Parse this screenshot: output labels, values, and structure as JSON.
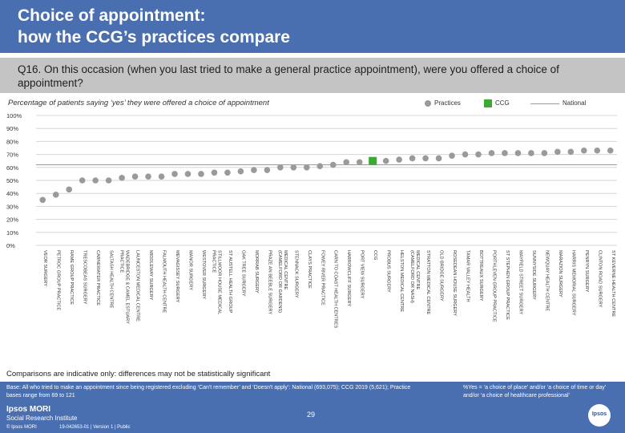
{
  "header": {
    "title_line1": "Choice of appointment:",
    "title_line2": "how the CCG’s practices compare"
  },
  "question": "Q16. On this occasion (when you last tried to make a general practice appointment), were you offered a choice of appointment?",
  "subtitle": "Percentage of patients saying ‘yes’ they were offered a choice of appointment",
  "legend": {
    "practices": "Practices",
    "ccg": "CCG",
    "national": "National"
  },
  "colors": {
    "bar": "#4a6fb0",
    "practice": "#9a9a9a",
    "ccg": "#3aaa35",
    "national": "#c9a000",
    "grid": "#d5d5d5"
  },
  "chart_data": {
    "type": "scatter",
    "title": "Percentage of patients saying ‘yes’ they were offered a choice of appointment",
    "ylabel": "%",
    "ylim": [
      0,
      100
    ],
    "yticks": [
      "0%",
      "10%",
      "20%",
      "30%",
      "40%",
      "50%",
      "60%",
      "70%",
      "80%",
      "90%",
      "100%"
    ],
    "national_value": 62,
    "points": [
      {
        "label": "VEOR SURGERY",
        "value": 35,
        "type": "practice"
      },
      {
        "label": "PETROC GROUP PRACTICE",
        "value": 39,
        "type": "practice"
      },
      {
        "label": "RAME GROUP PRACTICE",
        "value": 43,
        "type": "practice"
      },
      {
        "label": "TRESCOBEAS SURGERY",
        "value": 50,
        "type": "practice"
      },
      {
        "label": "CARNEWATER PRACTICE",
        "value": 50,
        "type": "practice"
      },
      {
        "label": "SALTASH HEALTH CENTRE",
        "value": 50,
        "type": "practice"
      },
      {
        "label": "WADEBRIDGE & CAMEL ESTUARY PRACTICE",
        "value": 52,
        "type": "practice"
      },
      {
        "label": "LAUNCESTON MEDICAL CENTRE",
        "value": 53,
        "type": "practice"
      },
      {
        "label": "MIDDLEWAY SURGERY",
        "value": 53,
        "type": "practice"
      },
      {
        "label": "FALMOUTH HEALTH CENTRE",
        "value": 53,
        "type": "practice"
      },
      {
        "label": "MEVAGISSEY SURGERY",
        "value": 55,
        "type": "practice"
      },
      {
        "label": "MANOR SURGERY",
        "value": 55,
        "type": "practice"
      },
      {
        "label": "WESTOVER SURGERY",
        "value": 55,
        "type": "practice"
      },
      {
        "label": "STILLMOOR HOUSE MEDICAL PRACTICE",
        "value": 56,
        "type": "practice"
      },
      {
        "label": "ST AUSTELL HEALTH GROUP",
        "value": 56,
        "type": "practice"
      },
      {
        "label": "OAK TREE SURGERY",
        "value": 57,
        "type": "practice"
      },
      {
        "label": "MORRAB SURGERY",
        "value": 58,
        "type": "practice"
      },
      {
        "label": "PRAZE AN BEEBLE SURGERY",
        "value": 58,
        "type": "practice"
      },
      {
        "label": "MEDICAL CENTRE (CAMELFORD OR GARDENS)",
        "value": 60,
        "type": "practice"
      },
      {
        "label": "STENNACK SURGERY",
        "value": 60,
        "type": "practice"
      },
      {
        "label": "CLAYS PRACTICE",
        "value": 60,
        "type": "practice"
      },
      {
        "label": "FOWEY RIVER PRACTICE",
        "value": 61,
        "type": "practice"
      },
      {
        "label": "CARN TO COAST HEALTH CENTRES",
        "value": 62,
        "type": "practice"
      },
      {
        "label": "HARROWCLIFF SURGERY",
        "value": 64,
        "type": "practice"
      },
      {
        "label": "PORT VIEW SURGERY",
        "value": 64,
        "type": "practice"
      },
      {
        "label": "CCG",
        "value": 65,
        "type": "ccg"
      },
      {
        "label": "PROBUS SURGERY",
        "value": 65,
        "type": "practice"
      },
      {
        "label": "HELSTON MEDICAL CENTRE",
        "value": 66,
        "type": "practice"
      },
      {
        "label": "MEDICAL CENTRE (CAMELFORD OR NASH)",
        "value": 67,
        "type": "practice"
      },
      {
        "label": "STRATTON MEDICAL CENTRE",
        "value": 67,
        "type": "practice"
      },
      {
        "label": "OLD BRIDGE SURGERY",
        "value": 67,
        "type": "practice"
      },
      {
        "label": "ROSEDEAN HOUSE SURGERY",
        "value": 69,
        "type": "practice"
      },
      {
        "label": "TAMAR VALLEY HEALTH",
        "value": 70,
        "type": "practice"
      },
      {
        "label": "BOTTREAUX SURGERY",
        "value": 70,
        "type": "practice"
      },
      {
        "label": "PORTHLEVEN GROUP PRACTICE",
        "value": 71,
        "type": "practice"
      },
      {
        "label": "ST STEPHEN GROUP PRACTICE",
        "value": 71,
        "type": "practice"
      },
      {
        "label": "MAYFIELD STREET SURGERY",
        "value": 71,
        "type": "practice"
      },
      {
        "label": "SUNNYSIDE SURGERY",
        "value": 71,
        "type": "practice"
      },
      {
        "label": "NEWQUAY HEALTH CENTRE",
        "value": 71,
        "type": "practice"
      },
      {
        "label": "MARAZION SURGERY",
        "value": 72,
        "type": "practice"
      },
      {
        "label": "HARRIS MEMORIAL SURGERY",
        "value": 72,
        "type": "practice"
      },
      {
        "label": "PENRYN SURGERY",
        "value": 73,
        "type": "practice"
      },
      {
        "label": "CLINTON ROAD SURGERY",
        "value": 73,
        "type": "practice"
      },
      {
        "label": "ST KEVERNE HEALTH CENTRE",
        "value": 73,
        "type": "practice"
      }
    ]
  },
  "note": "Comparisons are indicative only: differences may not be statistically significant",
  "footer": {
    "base": "Base: All who tried to make an appointment since being registered excluding ‘Can't remember’ and ‘Doesn't apply’: National (693,075); CCG 2019 (5,621); Practice bases range from 69 to 121",
    "yes_def": "%Yes = ‘a choice of place’ and/or ‘a choice of time or day’ and/or ‘a choice of healthcare professional’",
    "logo1": "Ipsos MORI",
    "logo2": "Social Research Institute",
    "copyright": "© Ipsos MORI",
    "job": "19-042653-01 | Version 1 | Public",
    "page": "29",
    "badge": "Ipsos"
  }
}
